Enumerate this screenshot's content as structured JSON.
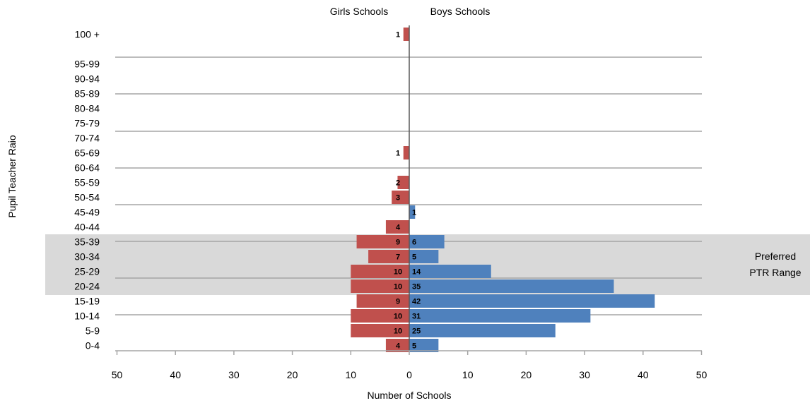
{
  "chart_data": {
    "type": "bar",
    "orientation": "horizontal-population-pyramid",
    "categories": [
      "100 +",
      "95-99",
      "90-94",
      "85-89",
      "80-84",
      "75-79",
      "70-74",
      "65-69",
      "60-64",
      "55-59",
      "50-54",
      "45-49",
      "40-44",
      "35-39",
      "30-34",
      "25-29",
      "20-24",
      "15-19",
      "10-14",
      "5-9",
      "0-4"
    ],
    "series": [
      {
        "name": "Girls Schools",
        "color": "#c0504d",
        "direction": "left",
        "values": [
          1,
          0,
          0,
          0,
          0,
          0,
          0,
          1,
          0,
          2,
          3,
          0,
          4,
          9,
          7,
          10,
          10,
          9,
          10,
          10,
          4
        ]
      },
      {
        "name": "Boys Schools",
        "color": "#4f81bd",
        "direction": "right",
        "values": [
          0,
          0,
          0,
          0,
          0,
          0,
          0,
          0,
          0,
          0,
          0,
          1,
          0,
          6,
          5,
          14,
          35,
          42,
          31,
          25,
          5
        ]
      }
    ],
    "xlabel": "Number of Schools",
    "ylabel": "Pupil Teacher Raio",
    "xlim": [
      -50,
      50
    ],
    "xticks": [
      "50",
      "40",
      "30",
      "20",
      "10",
      "0",
      "10",
      "20",
      "30",
      "40",
      "50"
    ],
    "highlight": {
      "label_line1": "Preferred",
      "label_line2": "PTR Range",
      "from": "35-39",
      "to": "20-24",
      "color": "#d9d9d9"
    },
    "grid": true
  }
}
